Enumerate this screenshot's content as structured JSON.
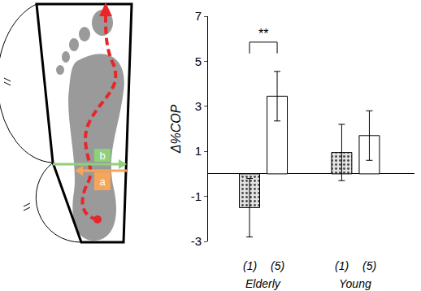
{
  "chart_data": {
    "type": "bar",
    "categories": [
      "Elderly",
      "Young"
    ],
    "series": [
      {
        "name": "(1)",
        "color": "#e3e3e3",
        "marker": "dotted",
        "values": [
          -1.5,
          0.95
        ],
        "errors": [
          1.3,
          1.25
        ]
      },
      {
        "name": "(5)",
        "color": "#ffffff",
        "values": [
          3.45,
          1.7
        ],
        "errors": [
          1.1,
          1.1
        ]
      }
    ],
    "y_label": "Δ%COP",
    "ylim": [
      -3,
      7
    ],
    "yticks": [
      -3,
      -1,
      1,
      3,
      5,
      7
    ],
    "grid": false,
    "significance": [
      {
        "category": "Elderly",
        "label": "**"
      }
    ]
  },
  "diagram": {
    "arrow_labels": [
      "b",
      "a"
    ]
  }
}
